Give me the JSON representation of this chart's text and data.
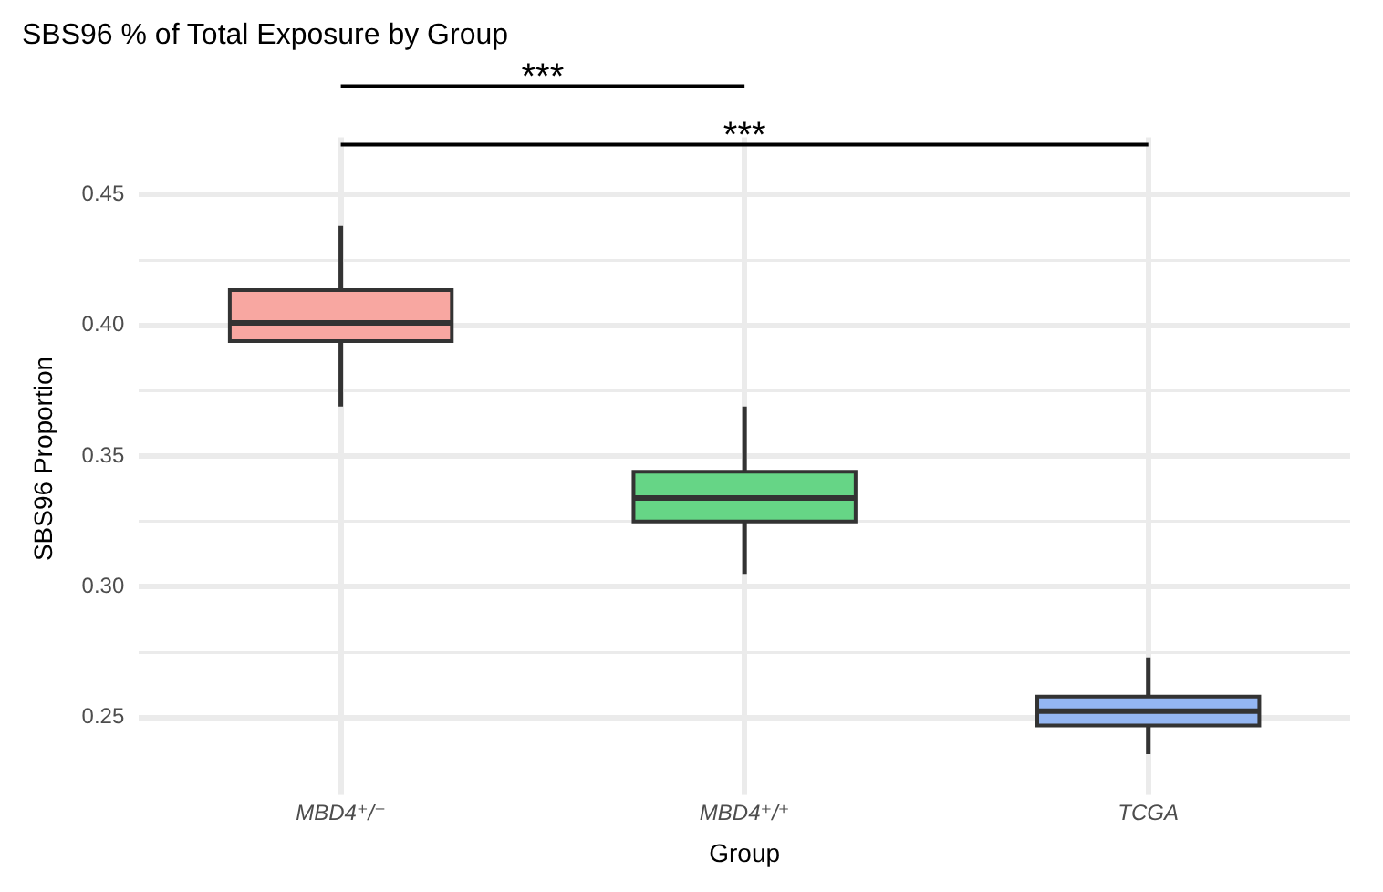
{
  "chart_data": {
    "type": "box",
    "title": "SBS96 % of Total Exposure by Group",
    "xlabel": "Group",
    "ylabel": "SBS96 Proportion",
    "categories": [
      "MBD4⁺/⁻",
      "MBD4⁺/⁺",
      "TCGA"
    ],
    "colors": [
      "#f8a7a1",
      "#66d586",
      "#94b6f2"
    ],
    "boxes": [
      {
        "low": 0.369,
        "q1": 0.394,
        "median": 0.401,
        "q3": 0.4135,
        "high": 0.438
      },
      {
        "low": 0.305,
        "q1": 0.325,
        "median": 0.334,
        "q3": 0.344,
        "high": 0.369
      },
      {
        "low": 0.236,
        "q1": 0.247,
        "median": 0.2525,
        "q3": 0.258,
        "high": 0.273
      }
    ],
    "ylim": [
      0.226,
      0.472
    ],
    "yticks": [
      0.25,
      {
        "value": 0.275,
        "label": null
      },
      {
        "value": 0.3,
        "label": "0.30"
      },
      {
        "value": 0.325,
        "label": null
      },
      0.35,
      {
        "value": 0.375,
        "label": null
      },
      {
        "value": 0.4,
        "label": "0.40"
      },
      {
        "value": 0.425,
        "label": null
      },
      0.45
    ],
    "grid": true,
    "legend": false,
    "annotations": [
      "***",
      "***"
    ]
  }
}
